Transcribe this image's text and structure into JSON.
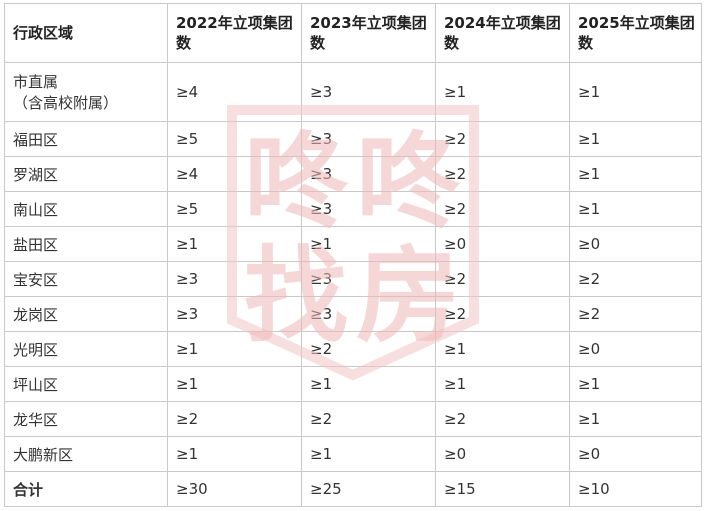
{
  "table": {
    "headers": [
      "行政区域",
      "2022年立项集团数",
      "2023年立项集团数",
      "2024年立项集团数",
      "2025年立项集团数"
    ],
    "rows": [
      {
        "region": "市直属",
        "region_sub": "（含高校附属）",
        "values": [
          "≥4",
          "≥3",
          "≥1",
          "≥1"
        ]
      },
      {
        "region": "福田区",
        "values": [
          "≥5",
          "≥3",
          "≥2",
          "≥1"
        ]
      },
      {
        "region": "罗湖区",
        "values": [
          "≥4",
          "≥3",
          "≥2",
          "≥1"
        ]
      },
      {
        "region": "南山区",
        "values": [
          "≥5",
          "≥3",
          "≥2",
          "≥1"
        ]
      },
      {
        "region": "盐田区",
        "values": [
          "≥1",
          "≥1",
          "≥0",
          "≥0"
        ]
      },
      {
        "region": "宝安区",
        "values": [
          "≥3",
          "≥3",
          "≥2",
          "≥2"
        ]
      },
      {
        "region": "龙岗区",
        "values": [
          "≥3",
          "≥3",
          "≥2",
          "≥2"
        ]
      },
      {
        "region": "光明区",
        "values": [
          "≥1",
          "≥2",
          "≥1",
          "≥0"
        ]
      },
      {
        "region": "坪山区",
        "values": [
          "≥1",
          "≥1",
          "≥1",
          "≥1"
        ]
      },
      {
        "region": "龙华区",
        "values": [
          "≥2",
          "≥2",
          "≥2",
          "≥1"
        ]
      },
      {
        "region": "大鹏新区",
        "values": [
          "≥1",
          "≥1",
          "≥0",
          "≥0"
        ]
      }
    ],
    "total": {
      "region": "合计",
      "values": [
        "≥30",
        "≥25",
        "≥15",
        "≥10"
      ]
    }
  },
  "watermark": {
    "chars": [
      "咚",
      "咚",
      "找",
      "房"
    ],
    "color": "#e8a0a0"
  }
}
